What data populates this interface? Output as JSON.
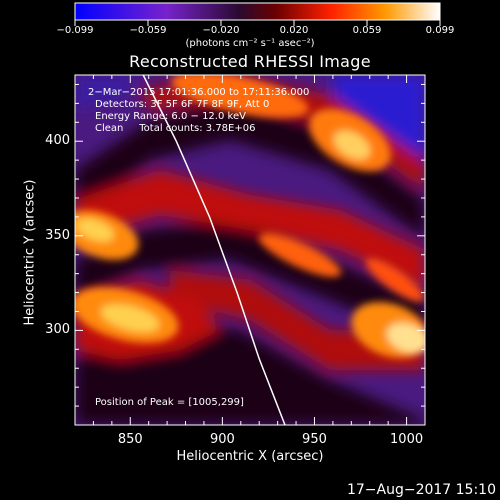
{
  "colorbar": {
    "tick_labels": [
      "−0.099",
      "−0.059",
      "−0.020",
      "0.020",
      "0.059",
      "0.099"
    ],
    "units": "(photons cm⁻² s⁻¹ asec⁻²)",
    "range": [
      -0.099,
      0.099
    ]
  },
  "title": "Reconstructed RHESSI Image",
  "info": {
    "time_range": "2−Mar−2015 17:01:36.000 to 17:11:36.000",
    "detectors": "Detectors: 3F 5F 6F 7F 8F 9F, Att 0",
    "energy": "Energy Range: 6.0 − 12.0 keV",
    "clean": "Clean     Total counts: 3.78E+06",
    "peak": "Position of Peak = [1005,299]"
  },
  "timestamp": "17−Aug−2017 15:10",
  "chart_data": {
    "type": "heatmap",
    "title": "Reconstructed RHESSI Image",
    "xlabel": "Heliocentric X (arcsec)",
    "ylabel": "Heliocentric Y (arcsec)",
    "xlim": [
      820,
      1010
    ],
    "ylim": [
      250,
      435
    ],
    "x_ticks": [
      850,
      900,
      950,
      1000
    ],
    "y_ticks": [
      300,
      350,
      400
    ],
    "color_range": [
      -0.099,
      0.099
    ],
    "peak_position": [
      1005,
      299
    ],
    "limb_curve": {
      "x": [
        857,
        875,
        893,
        908,
        920,
        934
      ],
      "y": [
        435,
        400,
        360,
        320,
        285,
        250
      ]
    }
  }
}
